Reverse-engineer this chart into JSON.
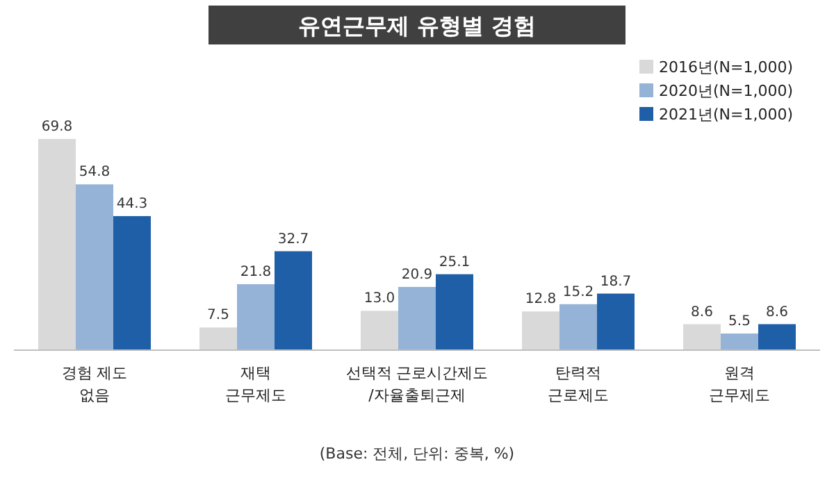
{
  "chart_data": {
    "type": "bar",
    "title": "유연근무제 유형별 경험",
    "categories": [
      "경험 제도\n없음",
      "재택\n근무제도",
      "선택적 근로시간제도\n/자율출퇴근제",
      "탄력적\n근로제도",
      "원격\n근무제도"
    ],
    "series": [
      {
        "name": "2016년(N=1,000)",
        "color": "#d9d9d9",
        "values": [
          69.8,
          7.5,
          13.0,
          12.8,
          8.6
        ],
        "value_labels": [
          "69.8",
          "7.5",
          "13.0",
          "12.8",
          "8.6"
        ]
      },
      {
        "name": "2020년(N=1,000)",
        "color": "#95b3d7",
        "values": [
          54.8,
          21.8,
          20.9,
          15.2,
          5.5
        ],
        "value_labels": [
          "54.8",
          "21.8",
          "20.9",
          "15.2",
          "5.5"
        ]
      },
      {
        "name": "2021년(N=1,000)",
        "color": "#1f5fa8",
        "values": [
          44.3,
          32.7,
          25.1,
          18.7,
          8.6
        ],
        "value_labels": [
          "44.3",
          "32.7",
          "25.1",
          "18.7",
          "8.6"
        ]
      }
    ],
    "legend": "top right",
    "annotations": [
      "(Base: 전체, 단위: 중복, %)"
    ]
  }
}
